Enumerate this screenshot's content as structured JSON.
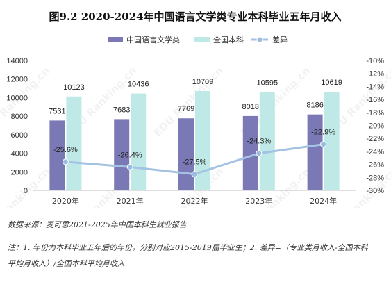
{
  "chart_data": {
    "type": "bar",
    "title": "图9.2  2020-2024年中国语言文学类专业本科毕业五年月收入",
    "categories": [
      "2020年",
      "2021年",
      "2022年",
      "2023年",
      "2024年"
    ],
    "series": [
      {
        "name": "中国语言文学类",
        "type": "bar",
        "axis": "left",
        "values": [
          7531,
          7683,
          7769,
          8018,
          8186
        ],
        "labels": [
          "7531",
          "7683",
          "7769",
          "8018",
          "8186"
        ]
      },
      {
        "name": "全国本科",
        "type": "bar",
        "axis": "left",
        "values": [
          10123,
          10436,
          10709,
          10595,
          10619
        ],
        "labels": [
          "10123",
          "10436",
          "10709",
          "10595",
          "10619"
        ]
      },
      {
        "name": "差异",
        "type": "line",
        "axis": "right",
        "values": [
          -25.6,
          -26.4,
          -27.5,
          -24.3,
          -22.9
        ],
        "labels": [
          "-25.6%",
          "-26.4%",
          "-27.5%",
          "-24.3%",
          "-22.9%"
        ]
      }
    ],
    "left_axis": {
      "range": [
        0,
        14000
      ],
      "ticks": [
        "0",
        "2000",
        "4000",
        "6000",
        "8000",
        "10000",
        "12000",
        "14000"
      ]
    },
    "right_axis": {
      "range": [
        -30,
        -10
      ],
      "ticks": [
        "-10%",
        "-12%",
        "-14%",
        "-16%",
        "-18%",
        "-20%",
        "-22%",
        "-24%",
        "-26%",
        "-28%",
        "-30%"
      ]
    },
    "grid": false,
    "legend_position": "top-center",
    "colors": {
      "series1": "#7b79b5",
      "series2": "#bfe9e6",
      "line": "#a4c2e2",
      "line_marker": "#9dbde0"
    }
  },
  "notes": {
    "source": "数据来源：麦可思2021-2025年中国本科生就业报告",
    "note_line1": "注：1. 年份为本科毕业五年后的年份，分别对应2015-2019届毕业生；2. 差异=（专业类月收入-全国本科",
    "note_line2": "平均月收入）/全国本科平均月收入"
  },
  "watermark": {
    "text": "EDU Ranking.cn"
  }
}
